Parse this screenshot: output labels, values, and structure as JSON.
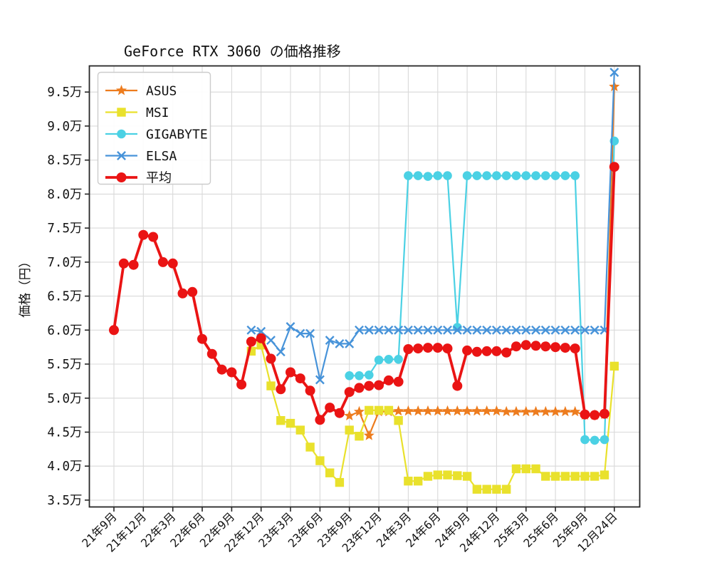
{
  "chart_data": {
    "type": "line",
    "title": "GeForce RTX 3060 の価格推移",
    "ylabel": "価格（円）",
    "y_unit": "万円",
    "grid": true,
    "legend": {
      "position": "upper-left",
      "entries": [
        "ASUS",
        "MSI",
        "GIGABYTE",
        "ELSA",
        "平均"
      ]
    },
    "x_axis": {
      "n_months": 52,
      "first_month": "21年9月",
      "tick_labels": [
        "21年9月",
        "21年12月",
        "22年3月",
        "22年6月",
        "22年9月",
        "22年12月",
        "23年3月",
        "23年6月",
        "23年9月",
        "23年12月",
        "24年3月",
        "24年6月",
        "24年9月",
        "24年12月",
        "25年3月",
        "25年6月",
        "25年9月",
        "12月24日"
      ],
      "tick_month_indices": [
        0,
        3,
        6,
        9,
        12,
        15,
        18,
        21,
        24,
        27,
        30,
        33,
        36,
        39,
        42,
        45,
        48,
        51
      ]
    },
    "y_axis": {
      "tick_labels": [
        "3.5万",
        "4.0万",
        "4.5万",
        "5.0万",
        "5.5万",
        "6.0万",
        "6.5万",
        "7.0万",
        "7.5万",
        "8.0万",
        "8.5万",
        "9.0万",
        "9.5万"
      ],
      "tick_values": [
        3.5,
        4.0,
        4.5,
        5.0,
        5.5,
        6.0,
        6.5,
        7.0,
        7.5,
        8.0,
        8.5,
        9.0,
        9.5
      ],
      "range": [
        3.4,
        9.9
      ]
    },
    "colors": {
      "axis": "#262626",
      "grid": "#d9d9d9",
      "legend_border": "#cccccc",
      "text": "#111111"
    },
    "series": [
      {
        "name": "ASUS",
        "color": "#ed7c1e",
        "marker": "star",
        "marker_size": 8,
        "line_width": 2.2,
        "start_index": 24,
        "values": [
          4.74,
          4.8,
          4.45,
          4.8,
          4.8,
          4.81,
          4.81,
          4.81,
          4.81,
          4.81,
          4.81,
          4.81,
          4.81,
          4.81,
          4.81,
          4.81,
          4.8,
          4.8,
          4.8,
          4.8,
          4.8,
          4.8,
          4.8,
          4.8,
          4.75,
          4.75,
          4.76,
          9.58
        ]
      },
      {
        "name": "MSI",
        "color": "#e9e12c",
        "marker": "square",
        "marker_size": 6.2,
        "line_width": 2.2,
        "start_index": 14,
        "values": [
          5.69,
          5.78,
          5.18,
          4.67,
          4.63,
          4.53,
          4.28,
          4.08,
          3.9,
          3.76,
          4.53,
          4.44,
          4.82,
          4.82,
          4.82,
          4.67,
          3.78,
          3.78,
          3.85,
          3.87,
          3.87,
          3.86,
          3.85,
          3.66,
          3.66,
          3.66,
          3.66,
          3.96,
          3.96,
          3.96,
          3.85,
          3.85,
          3.85,
          3.85,
          3.85,
          3.85,
          3.87,
          5.47
        ]
      },
      {
        "name": "GIGABYTE",
        "color": "#4bd1e4",
        "marker": "circle",
        "marker_size": 6.3,
        "line_width": 2.2,
        "start_index": 24,
        "values": [
          5.33,
          5.33,
          5.34,
          5.56,
          5.57,
          5.57,
          8.27,
          8.27,
          8.26,
          8.27,
          8.27,
          6.04,
          8.27,
          8.27,
          8.27,
          8.27,
          8.27,
          8.27,
          8.27,
          8.27,
          8.27,
          8.27,
          8.27,
          8.27,
          4.39,
          4.38,
          4.39,
          8.78
        ]
      },
      {
        "name": "ELSA",
        "color": "#4793d9",
        "marker": "x",
        "marker_size": 5.6,
        "line_width": 2.2,
        "start_index": 14,
        "values": [
          6.0,
          5.98,
          5.85,
          5.68,
          6.05,
          5.95,
          5.95,
          5.27,
          5.85,
          5.8,
          5.8,
          6.0,
          6.0,
          6.0,
          6.0,
          6.0,
          6.0,
          6.0,
          6.0,
          6.0,
          6.0,
          6.0,
          6.0,
          6.0,
          6.0,
          6.0,
          6.0,
          6.0,
          6.0,
          6.0,
          6.0,
          6.0,
          6.0,
          6.0,
          6.0,
          6.0,
          6.0,
          9.79
        ]
      },
      {
        "name": "平均",
        "color": "#ea1414",
        "marker": "circle",
        "marker_size": 7,
        "line_width": 3.8,
        "start_index": 0,
        "values": [
          6.0,
          6.98,
          6.96,
          7.4,
          7.37,
          7.0,
          6.98,
          6.54,
          6.56,
          5.87,
          5.65,
          5.42,
          5.38,
          5.2,
          5.83,
          5.88,
          5.58,
          5.13,
          5.38,
          5.29,
          5.11,
          4.68,
          4.86,
          4.78,
          5.09,
          5.15,
          5.18,
          5.19,
          5.26,
          5.24,
          5.72,
          5.73,
          5.74,
          5.74,
          5.73,
          5.18,
          5.7,
          5.68,
          5.69,
          5.69,
          5.67,
          5.76,
          5.78,
          5.77,
          5.76,
          5.75,
          5.74,
          5.73,
          4.76,
          4.75,
          4.77,
          8.4
        ]
      }
    ]
  }
}
